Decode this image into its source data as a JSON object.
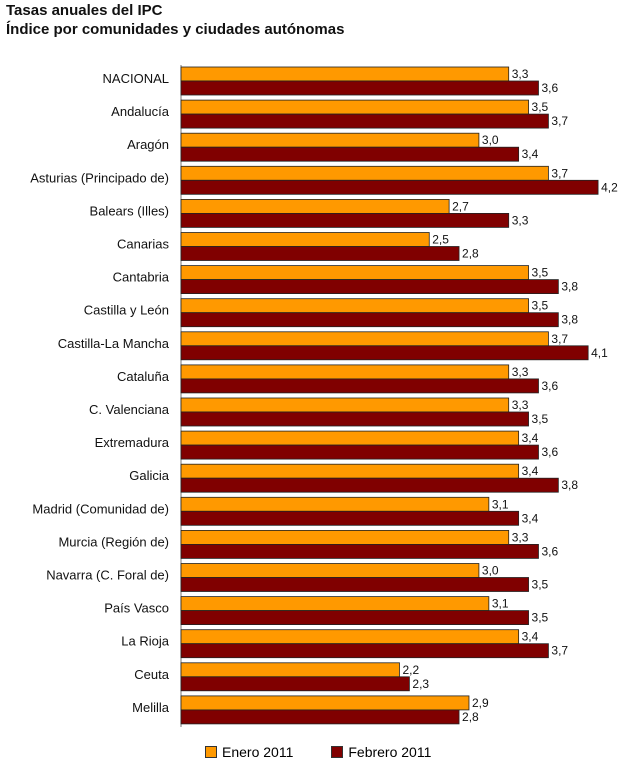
{
  "chart_data": {
    "type": "bar",
    "orientation": "horizontal",
    "title": "Tasas anuales del IPC",
    "subtitle": "Índice por comunidades y ciudades autónomas",
    "categories": [
      "NACIONAL",
      "Andalucía",
      "Aragón",
      "Asturias (Principado de)",
      "Balears (Illes)",
      "Canarias",
      "Cantabria",
      "Castilla y León",
      "Castilla-La Mancha",
      "Cataluña",
      "C. Valenciana",
      "Extremadura",
      "Galicia",
      "Madrid (Comunidad de)",
      "Murcia (Región de)",
      "Navarra (C. Foral de)",
      "País Vasco",
      "La Rioja",
      "Ceuta",
      "Melilla"
    ],
    "series": [
      {
        "name": "Enero 2011",
        "color": "#FF9900",
        "values": [
          3.3,
          3.5,
          3.0,
          3.7,
          2.7,
          2.5,
          3.5,
          3.5,
          3.7,
          3.3,
          3.3,
          3.4,
          3.4,
          3.1,
          3.3,
          3.0,
          3.1,
          3.4,
          2.2,
          2.9
        ],
        "labels": [
          "3,3",
          "3,5",
          "3,0",
          "3,7",
          "2,7",
          "2,5",
          "3,5",
          "3,5",
          "3,7",
          "3,3",
          "3,3",
          "3,4",
          "3,4",
          "3,1",
          "3,3",
          "3,0",
          "3,1",
          "3,4",
          "2,2",
          "2,9"
        ]
      },
      {
        "name": "Febrero 2011",
        "color": "#800000",
        "values": [
          3.6,
          3.7,
          3.4,
          4.2,
          3.3,
          2.8,
          3.8,
          3.8,
          4.1,
          3.6,
          3.5,
          3.6,
          3.8,
          3.4,
          3.6,
          3.5,
          3.5,
          3.7,
          2.3,
          2.8
        ],
        "labels": [
          "3,6",
          "3,7",
          "3,4",
          "4,2",
          "3,3",
          "2,8",
          "3,8",
          "3,8",
          "4,1",
          "3,6",
          "3,5",
          "3,6",
          "3,8",
          "3,4",
          "3,6",
          "3,5",
          "3,5",
          "3,7",
          "2,3",
          "2,8"
        ]
      }
    ],
    "xlim": [
      0,
      4.3
    ],
    "grid": false,
    "legend_position": "bottom"
  }
}
